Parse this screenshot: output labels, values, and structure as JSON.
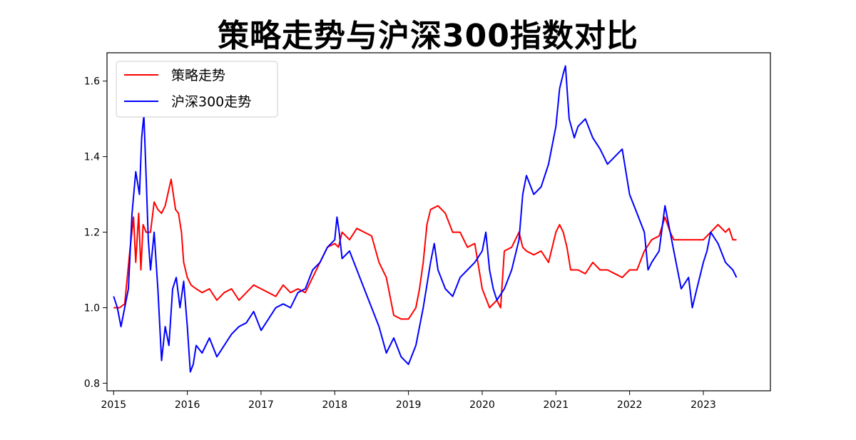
{
  "chart_data": {
    "type": "line",
    "title": "策略走势与沪深300指数对比",
    "xlabel": "",
    "ylabel": "",
    "xlim": [
      2014.91,
      2023.91
    ],
    "ylim": [
      0.78,
      1.675
    ],
    "x_ticks": [
      2015,
      2016,
      2017,
      2018,
      2019,
      2020,
      2021,
      2022,
      2023
    ],
    "x_tick_labels": [
      "2015",
      "2016",
      "2017",
      "2018",
      "2019",
      "2020",
      "2021",
      "2022",
      "2023"
    ],
    "y_ticks": [
      0.8,
      1.0,
      1.2,
      1.4,
      1.6
    ],
    "y_tick_labels": [
      "0.8",
      "1.0",
      "1.2",
      "1.4",
      "1.6"
    ],
    "grid": false,
    "legend_position": "top-left",
    "series": [
      {
        "name": "策略走势",
        "color": "#ff0000",
        "x": [
          2015.0,
          2015.08,
          2015.15,
          2015.22,
          2015.27,
          2015.3,
          2015.34,
          2015.37,
          2015.4,
          2015.44,
          2015.47,
          2015.5,
          2015.55,
          2015.6,
          2015.65,
          2015.7,
          2015.78,
          2015.84,
          2015.88,
          2015.92,
          2015.95,
          2016.0,
          2016.05,
          2016.12,
          2016.2,
          2016.3,
          2016.4,
          2016.5,
          2016.6,
          2016.7,
          2016.8,
          2016.9,
          2017.0,
          2017.1,
          2017.2,
          2017.3,
          2017.4,
          2017.5,
          2017.6,
          2017.7,
          2017.8,
          2017.9,
          2018.0,
          2018.05,
          2018.1,
          2018.2,
          2018.3,
          2018.4,
          2018.5,
          2018.6,
          2018.7,
          2018.8,
          2018.9,
          2019.0,
          2019.1,
          2019.15,
          2019.2,
          2019.25,
          2019.3,
          2019.4,
          2019.5,
          2019.6,
          2019.7,
          2019.8,
          2019.9,
          2020.0,
          2020.1,
          2020.2,
          2020.25,
          2020.3,
          2020.4,
          2020.5,
          2020.55,
          2020.6,
          2020.7,
          2020.8,
          2020.9,
          2021.0,
          2021.05,
          2021.1,
          2021.15,
          2021.2,
          2021.3,
          2021.4,
          2021.5,
          2021.6,
          2021.7,
          2021.8,
          2021.9,
          2022.0,
          2022.1,
          2022.2,
          2022.3,
          2022.4,
          2022.48,
          2022.55,
          2022.6,
          2022.7,
          2022.8,
          2022.9,
          2023.0,
          2023.1,
          2023.2,
          2023.3,
          2023.35,
          2023.4,
          2023.45
        ],
        "values": [
          1.0,
          1.0,
          1.01,
          1.15,
          1.24,
          1.12,
          1.25,
          1.1,
          1.22,
          1.2,
          1.2,
          1.2,
          1.28,
          1.26,
          1.25,
          1.27,
          1.34,
          1.26,
          1.25,
          1.2,
          1.12,
          1.08,
          1.06,
          1.05,
          1.04,
          1.05,
          1.02,
          1.04,
          1.05,
          1.02,
          1.04,
          1.06,
          1.05,
          1.04,
          1.03,
          1.06,
          1.04,
          1.05,
          1.04,
          1.08,
          1.12,
          1.16,
          1.17,
          1.16,
          1.2,
          1.18,
          1.21,
          1.2,
          1.19,
          1.12,
          1.08,
          0.98,
          0.97,
          0.97,
          1.0,
          1.05,
          1.12,
          1.22,
          1.26,
          1.27,
          1.25,
          1.2,
          1.2,
          1.16,
          1.17,
          1.05,
          1.0,
          1.02,
          1.0,
          1.15,
          1.16,
          1.2,
          1.16,
          1.15,
          1.14,
          1.15,
          1.12,
          1.2,
          1.22,
          1.2,
          1.16,
          1.1,
          1.1,
          1.09,
          1.12,
          1.1,
          1.1,
          1.09,
          1.08,
          1.1,
          1.1,
          1.15,
          1.18,
          1.19,
          1.24,
          1.2,
          1.18,
          1.18,
          1.18,
          1.18,
          1.18,
          1.2,
          1.22,
          1.2,
          1.21,
          1.18,
          1.18
        ]
      },
      {
        "name": "沪深300走势",
        "color": "#0000ff",
        "x": [
          2015.0,
          2015.05,
          2015.1,
          2015.15,
          2015.2,
          2015.25,
          2015.3,
          2015.35,
          2015.38,
          2015.41,
          2015.44,
          2015.47,
          2015.5,
          2015.55,
          2015.6,
          2015.65,
          2015.7,
          2015.75,
          2015.8,
          2015.85,
          2015.9,
          2015.95,
          2016.0,
          2016.04,
          2016.08,
          2016.12,
          2016.2,
          2016.3,
          2016.4,
          2016.5,
          2016.6,
          2016.7,
          2016.8,
          2016.9,
          2017.0,
          2017.1,
          2017.2,
          2017.3,
          2017.4,
          2017.5,
          2017.6,
          2017.7,
          2017.8,
          2017.9,
          2018.0,
          2018.03,
          2018.06,
          2018.1,
          2018.2,
          2018.3,
          2018.4,
          2018.5,
          2018.6,
          2018.7,
          2018.8,
          2018.9,
          2019.0,
          2019.1,
          2019.2,
          2019.3,
          2019.35,
          2019.4,
          2019.5,
          2019.6,
          2019.7,
          2019.8,
          2019.9,
          2020.0,
          2020.05,
          2020.1,
          2020.15,
          2020.2,
          2020.3,
          2020.4,
          2020.5,
          2020.55,
          2020.6,
          2020.7,
          2020.8,
          2020.9,
          2021.0,
          2021.05,
          2021.1,
          2021.13,
          2021.18,
          2021.25,
          2021.3,
          2021.4,
          2021.5,
          2021.6,
          2021.7,
          2021.8,
          2021.9,
          2022.0,
          2022.1,
          2022.2,
          2022.25,
          2022.3,
          2022.4,
          2022.48,
          2022.55,
          2022.6,
          2022.7,
          2022.8,
          2022.85,
          2022.9,
          2023.0,
          2023.05,
          2023.1,
          2023.2,
          2023.3,
          2023.4,
          2023.45
        ],
        "values": [
          1.03,
          1.0,
          0.95,
          1.0,
          1.05,
          1.25,
          1.36,
          1.3,
          1.45,
          1.51,
          1.35,
          1.18,
          1.1,
          1.2,
          1.05,
          0.86,
          0.95,
          0.9,
          1.05,
          1.08,
          1.0,
          1.07,
          0.95,
          0.83,
          0.85,
          0.9,
          0.88,
          0.92,
          0.87,
          0.9,
          0.93,
          0.95,
          0.96,
          0.99,
          0.94,
          0.97,
          1.0,
          1.01,
          1.0,
          1.04,
          1.05,
          1.1,
          1.12,
          1.16,
          1.18,
          1.24,
          1.2,
          1.13,
          1.15,
          1.1,
          1.05,
          1.0,
          0.95,
          0.88,
          0.92,
          0.87,
          0.85,
          0.9,
          1.0,
          1.12,
          1.17,
          1.1,
          1.05,
          1.03,
          1.08,
          1.1,
          1.12,
          1.15,
          1.2,
          1.1,
          1.05,
          1.02,
          1.05,
          1.1,
          1.18,
          1.3,
          1.35,
          1.3,
          1.32,
          1.38,
          1.48,
          1.58,
          1.62,
          1.64,
          1.5,
          1.45,
          1.48,
          1.5,
          1.45,
          1.42,
          1.38,
          1.4,
          1.42,
          1.3,
          1.25,
          1.2,
          1.1,
          1.12,
          1.15,
          1.27,
          1.2,
          1.15,
          1.05,
          1.08,
          1.0,
          1.04,
          1.12,
          1.15,
          1.2,
          1.17,
          1.12,
          1.1,
          1.08
        ]
      }
    ]
  }
}
